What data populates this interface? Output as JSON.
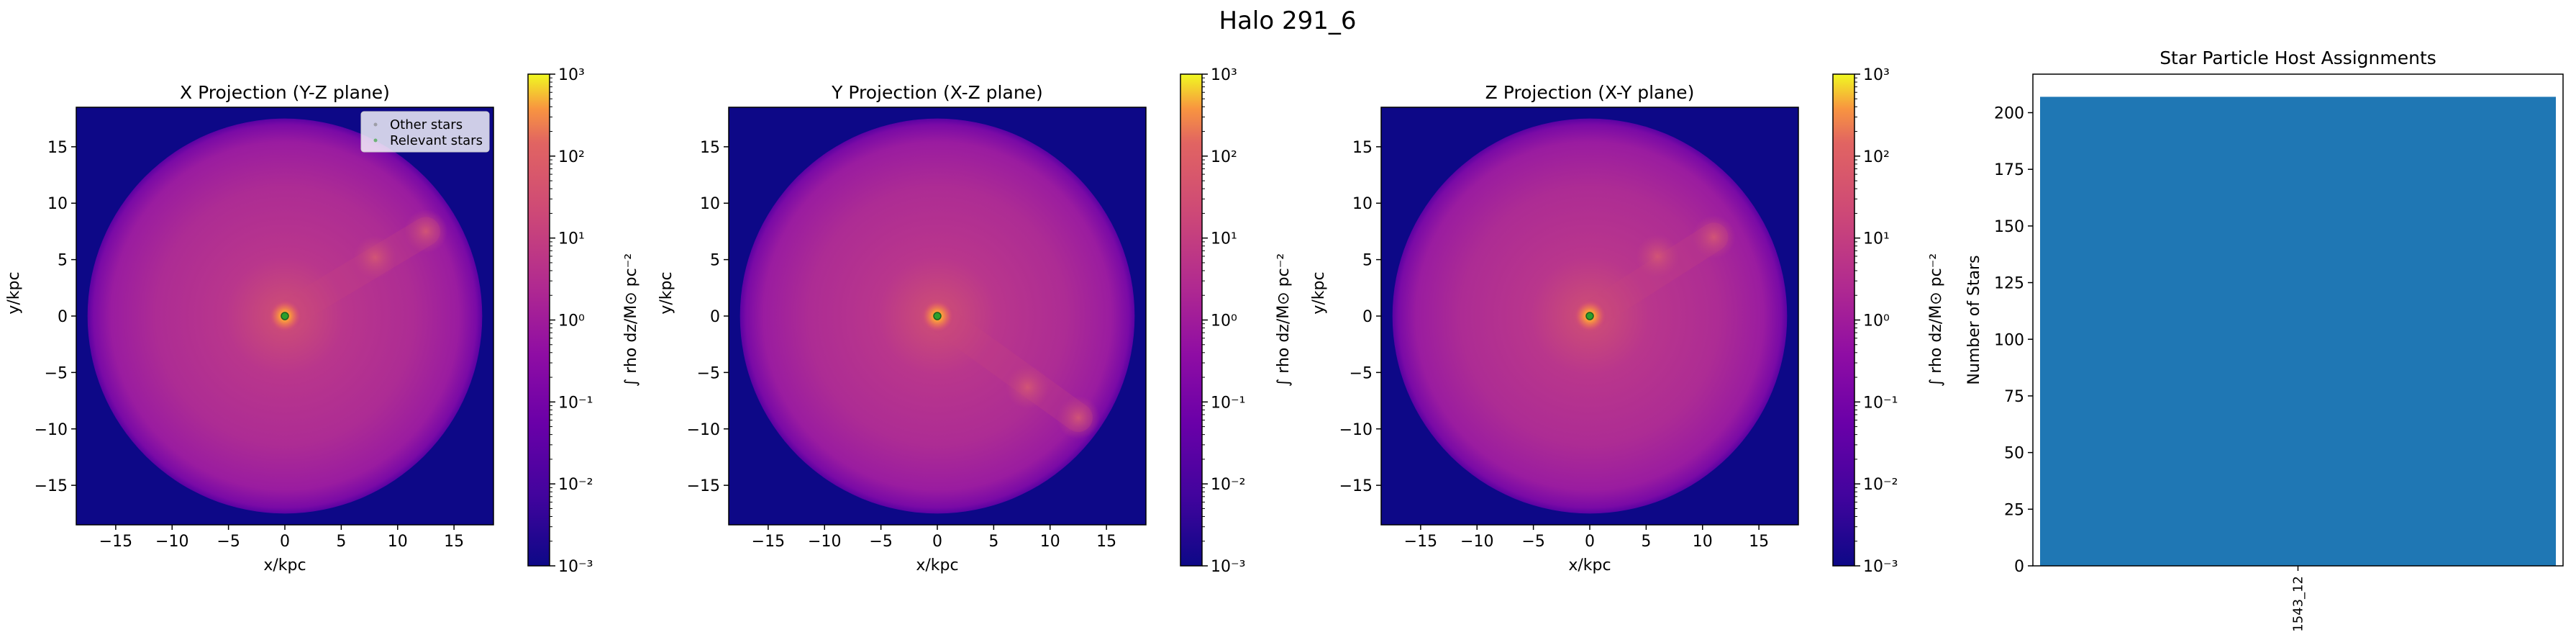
{
  "figure": {
    "title": "Halo 291_6"
  },
  "colors": {
    "map_background": "#0d0887",
    "halo_mid": "#b330a0",
    "halo_core": "#f89540",
    "bar": "#1f77b4",
    "other_stars": "#7f7f7f",
    "relevant_stars": "#2ca02c"
  },
  "chart_data": [
    {
      "type": "heatmap",
      "title": "X Projection (Y-Z plane)",
      "xlabel": "x/kpc",
      "ylabel": "y/kpc",
      "xlim": [
        -18.5,
        18.5
      ],
      "ylim": [
        -18.5,
        18.5
      ],
      "xticks": [
        -15,
        -10,
        -5,
        0,
        5,
        10,
        15
      ],
      "yticks": [
        -15,
        -10,
        -5,
        0,
        5,
        10,
        15
      ],
      "xtick_labels": [
        "−15",
        "−10",
        "−5",
        "0",
        "5",
        "10",
        "15"
      ],
      "ytick_labels": [
        "−15",
        "−10",
        "−5",
        "0",
        "5",
        "10",
        "15"
      ],
      "colormap": "plasma",
      "colorbar": {
        "scale": "log",
        "range": [
          0.001,
          1000
        ],
        "label": "∫ rho dz/M⊙ pc⁻²",
        "tick_labels": [
          "10⁻³",
          "10⁻²",
          "10⁻¹",
          "10⁰",
          "10¹",
          "10²",
          "10³"
        ]
      },
      "halo_radius": 17.5,
      "center": [
        0,
        0
      ],
      "substructures": [
        [
          8,
          5.2
        ],
        [
          12.5,
          7.5
        ]
      ],
      "legend": {
        "position": "upper right",
        "entries": [
          "Other stars",
          "Relevant stars"
        ]
      }
    },
    {
      "type": "heatmap",
      "title": "Y Projection (X-Z plane)",
      "xlabel": "x/kpc",
      "ylabel": "y/kpc",
      "xlim": [
        -18.5,
        18.5
      ],
      "ylim": [
        -18.5,
        18.5
      ],
      "xticks": [
        -15,
        -10,
        -5,
        0,
        5,
        10,
        15
      ],
      "yticks": [
        -15,
        -10,
        -5,
        0,
        5,
        10,
        15
      ],
      "xtick_labels": [
        "−15",
        "−10",
        "−5",
        "0",
        "5",
        "10",
        "15"
      ],
      "ytick_labels": [
        "−15",
        "−10",
        "−5",
        "0",
        "5",
        "10",
        "15"
      ],
      "colormap": "plasma",
      "colorbar": {
        "scale": "log",
        "range": [
          0.001,
          1000
        ],
        "label": "∫ rho dz/M⊙ pc⁻²",
        "tick_labels": [
          "10⁻³",
          "10⁻²",
          "10⁻¹",
          "10⁰",
          "10¹",
          "10²",
          "10³"
        ]
      },
      "halo_radius": 17.5,
      "center": [
        0,
        0
      ],
      "substructures": [
        [
          8,
          -6.3
        ],
        [
          12.5,
          -9
        ]
      ]
    },
    {
      "type": "heatmap",
      "title": "Z Projection (X-Y plane)",
      "xlabel": "x/kpc",
      "ylabel": "y/kpc",
      "xlim": [
        -18.5,
        18.5
      ],
      "ylim": [
        -18.5,
        18.5
      ],
      "xticks": [
        -15,
        -10,
        -5,
        0,
        5,
        10,
        15
      ],
      "yticks": [
        -15,
        -10,
        -5,
        0,
        5,
        10,
        15
      ],
      "xtick_labels": [
        "−15",
        "−10",
        "−5",
        "0",
        "5",
        "10",
        "15"
      ],
      "ytick_labels": [
        "−15",
        "−10",
        "−5",
        "0",
        "5",
        "10",
        "15"
      ],
      "colormap": "plasma",
      "colorbar": {
        "scale": "log",
        "range": [
          0.001,
          1000
        ],
        "label": "∫ rho dz/M⊙ pc⁻²",
        "tick_labels": [
          "10⁻³",
          "10⁻²",
          "10⁻¹",
          "10⁰",
          "10¹",
          "10²",
          "10³"
        ]
      },
      "halo_radius": 17.5,
      "center": [
        0,
        0
      ],
      "substructures": [
        [
          6,
          5.3
        ],
        [
          11,
          7
        ]
      ]
    },
    {
      "type": "bar",
      "title": "Star Particle Host Assignments",
      "ylabel": "Number of Stars",
      "xlabel": "",
      "categories": [
        "1543_12"
      ],
      "values": [
        207
      ],
      "ylim": [
        0,
        217
      ],
      "yticks": [
        0,
        25,
        50,
        75,
        100,
        125,
        150,
        175,
        200
      ]
    }
  ]
}
